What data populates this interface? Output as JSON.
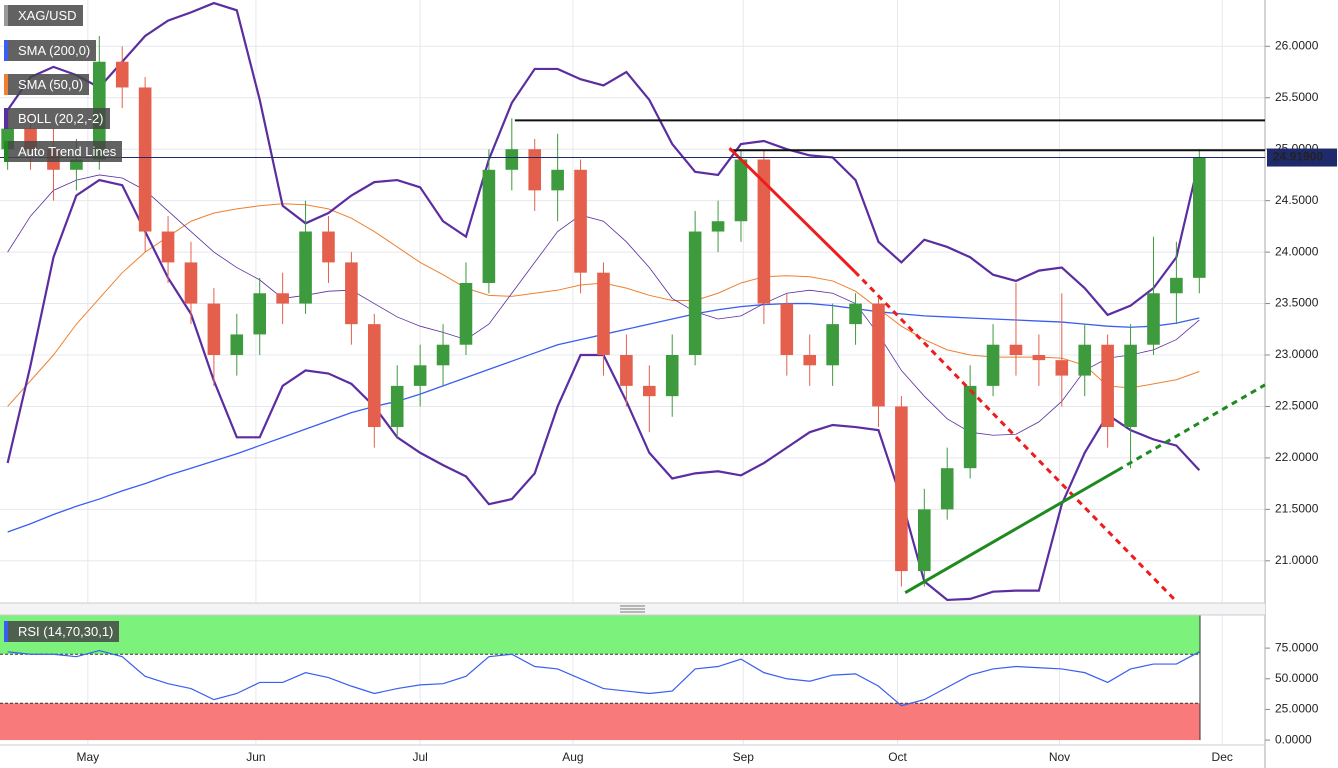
{
  "chart_data": [
    {
      "type": "candlestick",
      "title": "XAG/USD",
      "x": [
        1,
        4,
        7,
        10,
        13,
        16,
        19,
        22,
        25,
        28,
        31,
        34,
        37,
        40,
        43,
        46,
        49,
        52,
        55,
        58,
        61,
        64,
        67,
        70,
        73,
        76,
        79,
        82,
        85,
        88,
        91,
        94,
        97,
        100,
        103,
        106,
        109,
        112,
        115,
        118,
        121,
        124,
        127,
        130,
        133,
        136,
        139,
        142,
        145,
        148,
        151,
        154,
        157
      ],
      "xlim": [
        0,
        165.6
      ],
      "xticks": [
        {
          "value": 11.5,
          "label": "May"
        },
        {
          "value": 33.5,
          "label": "Jun"
        },
        {
          "value": 55,
          "label": "Jul"
        },
        {
          "value": 75,
          "label": "Aug"
        },
        {
          "value": 97.3,
          "label": "Sep"
        },
        {
          "value": 117.5,
          "label": "Oct"
        },
        {
          "value": 138.7,
          "label": "Nov"
        },
        {
          "value": 160,
          "label": "Dec"
        }
      ],
      "ylim": [
        20.59,
        26.45
      ],
      "yticks": [
        {
          "value": 21,
          "label": "21.0000"
        },
        {
          "value": 21.5,
          "label": "21.5000"
        },
        {
          "value": 22,
          "label": "22.0000"
        },
        {
          "value": 22.5,
          "label": "22.5000"
        },
        {
          "value": 23,
          "label": "23.0000"
        },
        {
          "value": 23.5,
          "label": "23.5000"
        },
        {
          "value": 24,
          "label": "24.0000"
        },
        {
          "value": 24.5,
          "label": "24.5000"
        },
        {
          "value": 25,
          "label": "25.0000"
        },
        {
          "value": 25.5,
          "label": "25.5000"
        },
        {
          "value": 26,
          "label": "26.0000"
        }
      ],
      "grid": true,
      "up_color": "#3d9a3d",
      "down_color": "#e4604d",
      "open": [
        25.0,
        25.2,
        25.0,
        24.8,
        24.9,
        25.85,
        25.6,
        24.2,
        23.9,
        23.5,
        23.0,
        23.2,
        23.6,
        23.5,
        24.2,
        23.9,
        23.3,
        22.3,
        22.7,
        22.9,
        23.1,
        23.7,
        24.8,
        25.0,
        24.6,
        24.8,
        23.8,
        23.0,
        22.7,
        22.6,
        23.0,
        24.2,
        24.3,
        24.9,
        23.5,
        23.0,
        22.9,
        23.3,
        23.5,
        22.5,
        20.9,
        21.5,
        21.9,
        22.7,
        23.1,
        23.0,
        22.95,
        22.8,
        23.1,
        22.3,
        23.1,
        23.6,
        23.75
      ],
      "high": [
        25.4,
        25.35,
        25.2,
        25.1,
        26.1,
        26.0,
        25.7,
        24.35,
        24.1,
        23.65,
        23.4,
        23.75,
        23.8,
        24.5,
        24.35,
        24.0,
        23.4,
        22.9,
        23.1,
        23.3,
        23.9,
        25.0,
        25.3,
        25.1,
        25.15,
        24.9,
        23.9,
        23.2,
        22.9,
        23.2,
        24.4,
        24.5,
        25.0,
        25.0,
        23.6,
        23.2,
        23.5,
        23.6,
        23.55,
        22.6,
        21.7,
        22.1,
        22.9,
        23.3,
        23.7,
        23.2,
        23.6,
        23.3,
        23.2,
        23.3,
        24.15,
        24.1,
        25.0
      ],
      "low": [
        24.8,
        24.8,
        24.5,
        24.6,
        24.8,
        25.4,
        24.0,
        23.7,
        23.3,
        22.7,
        22.8,
        23.0,
        23.3,
        23.4,
        23.7,
        23.1,
        22.1,
        22.2,
        22.5,
        22.7,
        23.0,
        23.6,
        24.6,
        24.4,
        24.3,
        23.6,
        22.8,
        22.5,
        22.25,
        22.4,
        22.9,
        24.0,
        24.1,
        23.3,
        22.8,
        22.7,
        22.7,
        23.1,
        22.3,
        20.75,
        20.75,
        21.4,
        21.8,
        22.6,
        22.8,
        22.7,
        22.5,
        22.6,
        22.1,
        21.9,
        23.0,
        23.3,
        23.6
      ],
      "close": [
        25.2,
        25.0,
        24.8,
        24.9,
        25.85,
        25.6,
        24.2,
        23.9,
        23.5,
        23.0,
        23.2,
        23.6,
        23.5,
        24.2,
        23.9,
        23.3,
        22.3,
        22.7,
        22.9,
        23.1,
        23.7,
        24.8,
        25.0,
        24.6,
        24.8,
        23.8,
        23.0,
        22.7,
        22.6,
        23.0,
        24.2,
        24.3,
        24.9,
        23.5,
        23.0,
        22.9,
        23.3,
        23.5,
        22.5,
        20.9,
        21.5,
        21.9,
        22.7,
        23.1,
        23.0,
        22.95,
        22.8,
        23.1,
        22.3,
        23.1,
        23.6,
        23.75,
        24.92
      ],
      "series": [
        {
          "name": "SMA (200,0)",
          "color": "#3a5ef0",
          "values": [
            21.28,
            21.36,
            21.45,
            21.53,
            21.6,
            21.68,
            21.75,
            21.83,
            21.9,
            21.97,
            22.04,
            22.12,
            22.2,
            22.28,
            22.36,
            22.44,
            22.5,
            22.55,
            22.62,
            22.7,
            22.78,
            22.86,
            22.94,
            23.02,
            23.1,
            23.15,
            23.2,
            23.25,
            23.3,
            23.35,
            23.4,
            23.44,
            23.47,
            23.49,
            23.5,
            23.5,
            23.48,
            23.45,
            23.42,
            23.4,
            23.38,
            23.37,
            23.36,
            23.35,
            23.34,
            23.33,
            23.32,
            23.3,
            23.28,
            23.27,
            23.28,
            23.31,
            23.36
          ]
        },
        {
          "name": "SMA (50,0)",
          "color": "#f08030",
          "values": [
            22.5,
            22.75,
            23.0,
            23.3,
            23.55,
            23.8,
            24.0,
            24.15,
            24.3,
            24.38,
            24.42,
            24.45,
            24.47,
            24.46,
            24.42,
            24.33,
            24.2,
            24.05,
            23.9,
            23.78,
            23.65,
            23.58,
            23.57,
            23.6,
            23.63,
            23.68,
            23.7,
            23.65,
            23.58,
            23.53,
            23.53,
            23.6,
            23.7,
            23.76,
            23.77,
            23.76,
            23.72,
            23.62,
            23.45,
            23.28,
            23.15,
            23.05,
            23.0,
            22.98,
            22.98,
            22.98,
            22.97,
            22.9,
            22.7,
            22.68,
            22.72,
            22.76,
            22.84
          ]
        },
        {
          "name": "BOLL (20,2,-2)",
          "color": "#5b2da0",
          "upper": [
            25.38,
            25.7,
            25.8,
            25.72,
            25.6,
            25.85,
            26.1,
            26.25,
            26.33,
            26.42,
            26.35,
            25.48,
            24.45,
            24.28,
            24.38,
            24.55,
            24.68,
            24.7,
            24.63,
            24.3,
            24.15,
            24.9,
            25.45,
            25.78,
            25.78,
            25.68,
            25.62,
            25.75,
            25.48,
            25.05,
            24.78,
            24.75,
            25.05,
            25.08,
            25.0,
            24.94,
            24.92,
            24.7,
            24.1,
            23.9,
            24.12,
            24.05,
            23.95,
            23.78,
            23.72,
            23.82,
            23.85,
            23.65,
            23.39,
            23.48,
            23.65,
            23.95,
            24.9
          ],
          "middle": [
            24.0,
            24.35,
            24.6,
            24.7,
            24.75,
            24.72,
            24.6,
            24.4,
            24.2,
            24.0,
            23.85,
            23.73,
            23.55,
            23.58,
            23.62,
            23.63,
            23.5,
            23.37,
            23.28,
            23.22,
            23.15,
            23.3,
            23.6,
            23.9,
            24.2,
            24.36,
            24.3,
            24.1,
            23.85,
            23.55,
            23.42,
            23.35,
            23.38,
            23.5,
            23.6,
            23.63,
            23.6,
            23.5,
            23.2,
            22.85,
            22.6,
            22.38,
            22.25,
            22.22,
            22.23,
            22.35,
            22.55,
            22.85,
            22.97,
            23.0,
            23.05,
            23.15,
            23.34
          ],
          "lower": [
            21.95,
            22.9,
            23.95,
            24.55,
            24.7,
            24.65,
            24.2,
            23.75,
            23.4,
            22.75,
            22.2,
            22.2,
            22.7,
            22.85,
            22.82,
            22.72,
            22.5,
            22.2,
            22.05,
            21.93,
            21.82,
            21.55,
            21.6,
            21.85,
            22.5,
            23.0,
            23.0,
            22.55,
            22.05,
            21.8,
            21.85,
            21.87,
            21.83,
            21.95,
            22.1,
            22.25,
            22.32,
            22.3,
            22.27,
            21.6,
            20.8,
            20.62,
            20.63,
            20.7,
            20.71,
            20.71,
            21.55,
            22.05,
            22.42,
            22.27,
            22.18,
            22.12,
            21.88
          ]
        }
      ],
      "trend_lines_label": "Auto Trend Lines",
      "trend_lines_color": "#1f8a1f",
      "trend_lines": [
        {
          "color": "#ee1c1c",
          "dashed": false,
          "x": [
            95.5,
            111.9
          ],
          "y": [
            25.01,
            23.81
          ]
        },
        {
          "color": "#ee1c1c",
          "dashed": true,
          "x": [
            111.9,
            153.8
          ],
          "y": [
            23.81,
            20.62
          ]
        },
        {
          "color": "#1f8a1f",
          "dashed": false,
          "x": [
            118.5,
            146.3
          ],
          "y": [
            20.69,
            21.88
          ]
        },
        {
          "color": "#1f8a1f",
          "dashed": true,
          "x": [
            146.3,
            165.6
          ],
          "y": [
            21.88,
            22.71
          ]
        }
      ],
      "levels": [
        {
          "value": 25.28,
          "x_start": 67.4,
          "color": "#111111"
        },
        {
          "value": 24.99,
          "x_start": 95.5,
          "color": "#111111"
        }
      ],
      "last_price": {
        "value": 24.919,
        "label": "24.91900",
        "color": "#1f2a6b"
      }
    },
    {
      "type": "line",
      "ylim": [
        -4,
        102
      ],
      "yticks": [
        {
          "value": 0,
          "label": "0.0000"
        },
        {
          "value": 25,
          "label": "25.0000"
        },
        {
          "value": 50,
          "label": "50.0000"
        },
        {
          "value": 75,
          "label": "75.0000"
        }
      ],
      "overbought": 70,
      "oversold": 30,
      "overbought_color": "#7cf27c",
      "oversold_color": "#f87a7a",
      "series": [
        {
          "name": "RSI (14,70,30,1)",
          "color": "#3a5ef0",
          "values": [
            72,
            70,
            70,
            68,
            73,
            68,
            52,
            46,
            42,
            33,
            38,
            47,
            47,
            55,
            51,
            44,
            38,
            42,
            45,
            46,
            52,
            68,
            70,
            60,
            58,
            50,
            42,
            40,
            38,
            40,
            58,
            60,
            66,
            55,
            50,
            48,
            53,
            54,
            44,
            28,
            33,
            43,
            53,
            58,
            60,
            59,
            58,
            55,
            47,
            58,
            62,
            62,
            72
          ]
        }
      ]
    }
  ]
}
